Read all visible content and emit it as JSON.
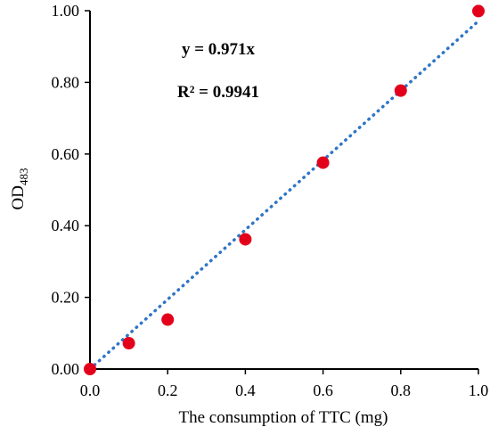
{
  "chart_data": {
    "type": "scatter",
    "xlabel": "The consumption of TTC (mg)",
    "ylabel": "OD",
    "ylabel_subscript": "483",
    "xlim": [
      0,
      1.0
    ],
    "ylim": [
      0,
      1.0
    ],
    "xticks": [
      "0.0",
      "0.2",
      "0.4",
      "0.6",
      "0.8",
      "1.0"
    ],
    "yticks": [
      "0.00",
      "0.20",
      "0.40",
      "0.60",
      "0.80",
      "1.00"
    ],
    "grid": false,
    "series": [
      {
        "marker_color": "#e3001b",
        "points": [
          {
            "x": 0.0,
            "y": 0.0
          },
          {
            "x": 0.1,
            "y": 0.072
          },
          {
            "x": 0.2,
            "y": 0.138
          },
          {
            "x": 0.4,
            "y": 0.362
          },
          {
            "x": 0.6,
            "y": 0.576
          },
          {
            "x": 0.8,
            "y": 0.777
          },
          {
            "x": 1.0,
            "y": 0.999
          }
        ]
      }
    ],
    "trendline": {
      "type": "linear",
      "slope": 0.971,
      "intercept": 0,
      "style": "dotted",
      "color": "#2e75c6",
      "x_range": [
        0,
        1.0
      ]
    },
    "annotations": {
      "equation": "y = 0.971x",
      "r_squared": "R² = 0.9941"
    }
  }
}
